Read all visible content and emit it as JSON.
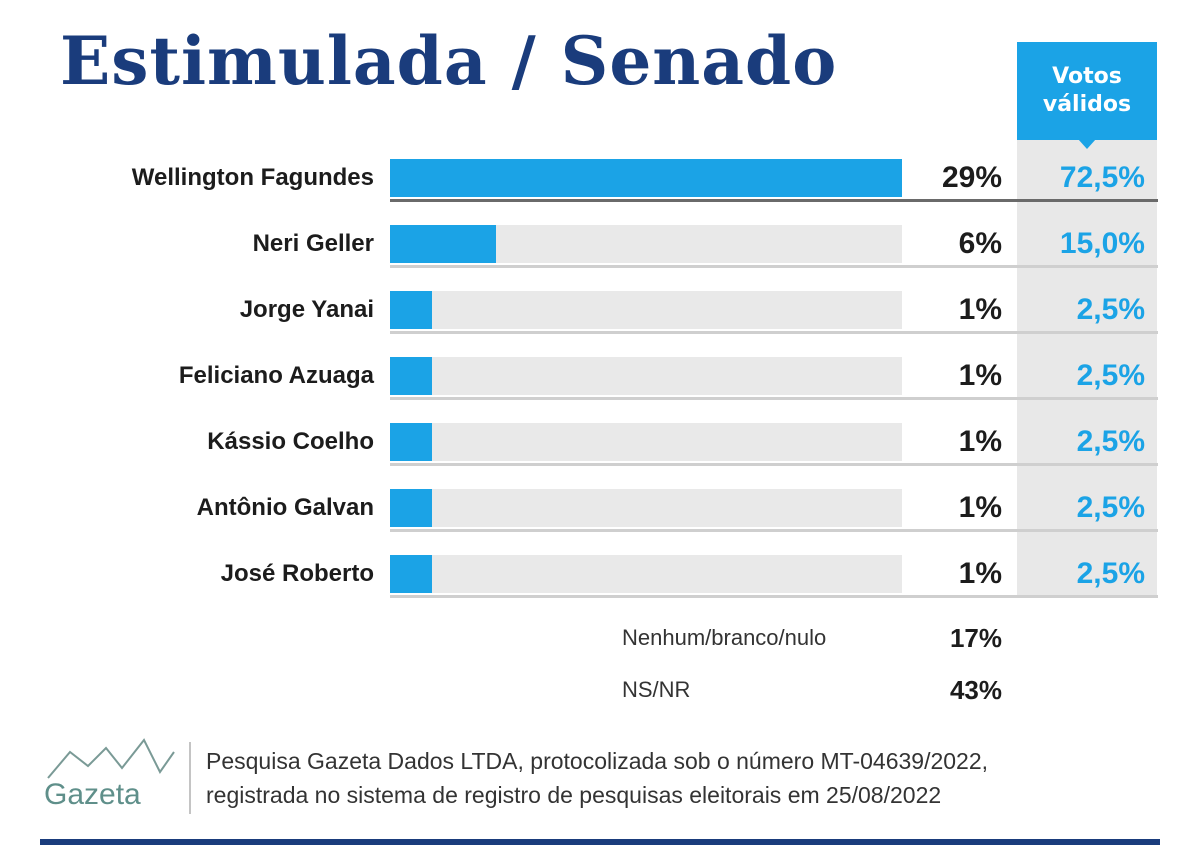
{
  "title": "Estimulada / Senado",
  "valid_votes_header": {
    "line1": "Votos",
    "line2": "válidos"
  },
  "chart_data": {
    "type": "bar",
    "orientation": "horizontal",
    "title": "Estimulada / Senado",
    "categories": [
      "Wellington Fagundes",
      "Neri Geller",
      "Jorge Yanai",
      "Feliciano Azuaga",
      "Kássio Coelho",
      "Antônio Galvan",
      "José Roberto"
    ],
    "values": [
      29,
      6,
      1,
      1,
      1,
      1,
      1
    ],
    "value_labels": [
      "29%",
      "6%",
      "1%",
      "1%",
      "1%",
      "1%",
      "1%"
    ],
    "valid_votes": [
      72.5,
      15.0,
      2.5,
      2.5,
      2.5,
      2.5,
      2.5
    ],
    "valid_votes_labels": [
      "72,5%",
      "15,0%",
      "2,5%",
      "2,5%",
      "2,5%",
      "2,5%",
      "2,5%"
    ],
    "xlim": [
      0,
      29
    ],
    "grid": false,
    "legend": "none"
  },
  "others": [
    {
      "label": "Nenhum/branco/nulo",
      "value": "17%"
    },
    {
      "label": "NS/NR",
      "value": "43%"
    }
  ],
  "footer": {
    "logo_text": "Gazeta",
    "line1": "Pesquisa Gazeta Dados LTDA, protocolizada sob o número MT-04639/2022,",
    "line2": "registrada no sistema de registro de pesquisas eleitorais em 25/08/2022"
  },
  "colors": {
    "accent": "#1ba3e6",
    "title": "#1a3c7c",
    "track": "#e9e9e9",
    "text": "#1c1c1c"
  }
}
